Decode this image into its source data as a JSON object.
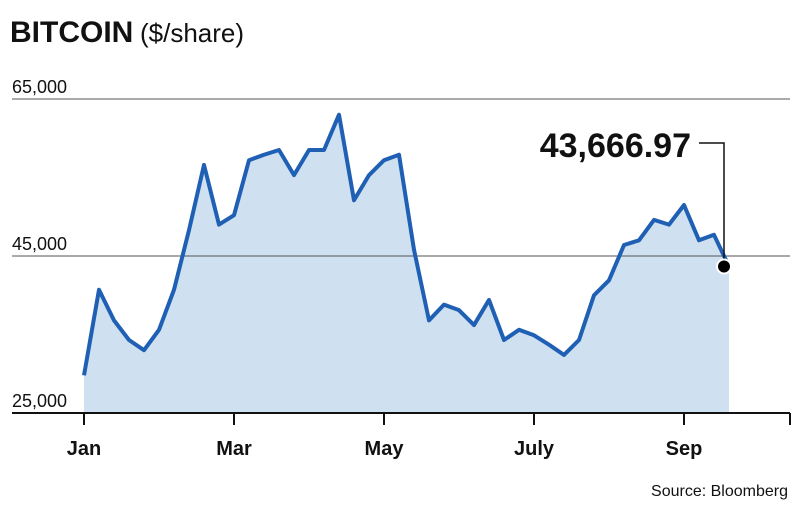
{
  "chart_data": {
    "type": "area",
    "title": "BITCOIN",
    "subtitle": "($/share)",
    "source": "Source: Bloomberg",
    "categories": [
      "Jan",
      null,
      null,
      null,
      null,
      null,
      null,
      null,
      null,
      null,
      "Mar",
      null,
      null,
      null,
      null,
      null,
      null,
      null,
      null,
      null,
      "May",
      null,
      null,
      null,
      null,
      null,
      null,
      null,
      null,
      null,
      "July",
      null,
      null,
      null,
      null,
      null,
      null,
      null,
      null,
      null,
      "Sep",
      null,
      null,
      null
    ],
    "values": [
      29800,
      40700,
      36800,
      34300,
      33000,
      35600,
      40700,
      48300,
      56600,
      49000,
      50200,
      57200,
      57900,
      58500,
      55300,
      58500,
      58500,
      63000,
      52100,
      55300,
      57200,
      57900,
      45800,
      36800,
      38800,
      38100,
      36200,
      39400,
      34300,
      35600,
      34900,
      33700,
      32400,
      34300,
      40000,
      41900,
      46400,
      47000,
      49600,
      49000,
      51500,
      47000,
      47700,
      43666.97
    ],
    "value_labels": [
      null,
      null,
      null,
      null,
      null,
      null,
      null,
      null,
      null,
      null,
      null,
      null,
      null,
      null,
      null,
      null,
      null,
      null,
      null,
      null,
      null,
      null,
      null,
      null,
      null,
      null,
      null,
      null,
      null,
      null,
      null,
      null,
      null,
      null,
      null,
      null,
      null,
      null,
      null,
      null,
      null,
      null,
      null,
      "43,666.97"
    ],
    "color": "#1f5fb4",
    "fill": "#cfe0f1",
    "ylim": [
      25000,
      65000
    ],
    "yticks": [
      {
        "value": 25000,
        "label": "25,000"
      },
      {
        "value": 45000,
        "label": "45,000"
      },
      {
        "value": 65000,
        "label": "65,000"
      }
    ],
    "grid": true
  }
}
